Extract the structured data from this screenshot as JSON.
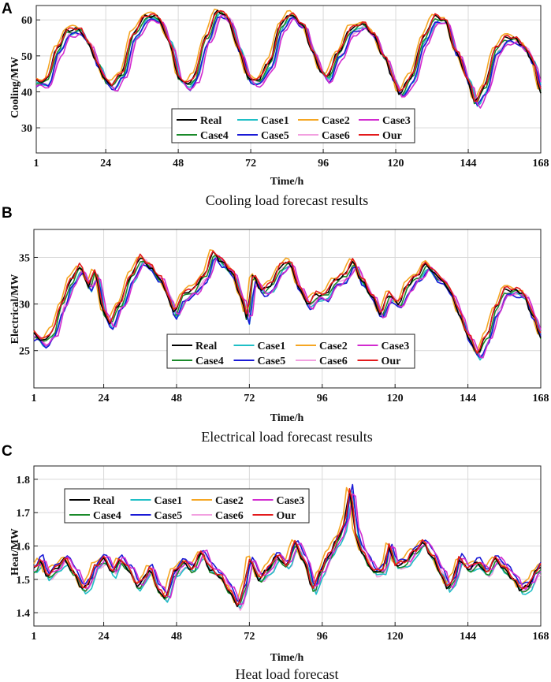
{
  "colors": {
    "Real": "#000000",
    "Case1": "#1fbfc6",
    "Case2": "#f5a623",
    "Case3": "#d22bd0",
    "Case4": "#1a8a2a",
    "Case5": "#1a1ad6",
    "Case6": "#f2a0e0",
    "Our": "#e31a1c"
  },
  "chart_data": [
    {
      "type": "line",
      "panel_label": "A",
      "caption": "Cooling load forecast results",
      "xlabel": "Time/h",
      "ylabel": "Cooling/MW",
      "xlim": [
        1,
        168
      ],
      "ylim": [
        23,
        64
      ],
      "xticks": [
        1,
        24,
        48,
        72,
        96,
        120,
        144,
        168
      ],
      "yticks": [
        30,
        40,
        50,
        60
      ],
      "grid": true,
      "legend": {
        "placement": "bottom-center",
        "entries": [
          "Real",
          "Case1",
          "Case2",
          "Case3",
          "Case4",
          "Case5",
          "Case6",
          "Our"
        ]
      },
      "keypoints": [
        [
          1,
          43
        ],
        [
          4,
          43
        ],
        [
          8,
          52
        ],
        [
          11,
          57
        ],
        [
          15,
          57.5
        ],
        [
          18,
          54
        ],
        [
          21,
          48
        ],
        [
          24,
          43
        ],
        [
          26,
          42
        ],
        [
          29,
          45
        ],
        [
          33,
          56
        ],
        [
          37,
          61
        ],
        [
          41,
          61
        ],
        [
          45,
          54
        ],
        [
          48,
          44
        ],
        [
          51,
          42
        ],
        [
          53,
          44
        ],
        [
          57,
          55
        ],
        [
          61,
          62.5
        ],
        [
          64,
          61
        ],
        [
          68,
          52
        ],
        [
          71,
          44
        ],
        [
          74,
          43
        ],
        [
          78,
          48
        ],
        [
          82,
          59
        ],
        [
          85,
          61.5
        ],
        [
          89,
          59
        ],
        [
          92,
          52
        ],
        [
          95,
          46
        ],
        [
          97,
          44
        ],
        [
          101,
          51
        ],
        [
          105,
          57.5
        ],
        [
          109,
          59
        ],
        [
          112,
          56.5
        ],
        [
          116,
          50
        ],
        [
          119,
          44
        ],
        [
          121,
          39.5
        ],
        [
          125,
          44
        ],
        [
          129,
          55
        ],
        [
          133,
          61
        ],
        [
          136,
          60
        ],
        [
          140,
          51
        ],
        [
          144,
          43
        ],
        [
          146,
          37
        ],
        [
          149,
          41
        ],
        [
          153,
          52
        ],
        [
          156,
          55
        ],
        [
          159,
          55
        ],
        [
          162,
          53
        ],
        [
          165,
          49
        ],
        [
          168,
          40
        ]
      ],
      "series_offsets": [
        {
          "name": "Case1",
          "dy": -0.8,
          "dx": 1
        },
        {
          "name": "Case2",
          "dy": 0.7,
          "dx": -0.5
        },
        {
          "name": "Case3",
          "dy": -1.5,
          "dx": 1.5
        },
        {
          "name": "Case4",
          "dy": -0.4,
          "dx": 0.4
        },
        {
          "name": "Case5",
          "dy": -1.2,
          "dx": 0.8
        },
        {
          "name": "Case6",
          "dy": -0.9,
          "dx": 1.2
        },
        {
          "name": "Our",
          "dy": 0.3,
          "dx": 0.2
        }
      ]
    },
    {
      "type": "line",
      "panel_label": "B",
      "caption": "Electrical load forecast results",
      "xlabel": "Time/h",
      "ylabel": "Electrical/MW",
      "xlim": [
        1,
        168
      ],
      "ylim": [
        21,
        38
      ],
      "xticks": [
        1,
        24,
        48,
        72,
        96,
        120,
        144,
        168
      ],
      "yticks": [
        25,
        30,
        35
      ],
      "grid": true,
      "legend": {
        "placement": "bottom-center",
        "entries": [
          "Real",
          "Case1",
          "Case2",
          "Case3",
          "Case4",
          "Case5",
          "Case6",
          "Our"
        ]
      },
      "keypoints": [
        [
          1,
          26.8
        ],
        [
          4,
          26
        ],
        [
          7,
          27
        ],
        [
          10,
          30
        ],
        [
          13,
          32.5
        ],
        [
          16,
          34
        ],
        [
          19,
          32
        ],
        [
          21,
          33.5
        ],
        [
          24,
          29
        ],
        [
          26,
          28
        ],
        [
          29,
          30
        ],
        [
          33,
          33
        ],
        [
          36,
          35
        ],
        [
          39,
          34
        ],
        [
          42,
          33
        ],
        [
          45,
          31
        ],
        [
          47,
          29
        ],
        [
          50,
          31
        ],
        [
          53,
          31.5
        ],
        [
          57,
          33
        ],
        [
          60,
          35.5
        ],
        [
          63,
          34.5
        ],
        [
          66,
          33.5
        ],
        [
          69,
          31
        ],
        [
          71,
          28.5
        ],
        [
          73,
          33
        ],
        [
          76,
          31.5
        ],
        [
          79,
          32
        ],
        [
          82,
          34
        ],
        [
          85,
          34.5
        ],
        [
          88,
          32
        ],
        [
          91,
          30
        ],
        [
          94,
          31
        ],
        [
          97,
          31
        ],
        [
          100,
          32.5
        ],
        [
          103,
          33
        ],
        [
          106,
          34.5
        ],
        [
          109,
          32.5
        ],
        [
          112,
          31
        ],
        [
          115,
          29
        ],
        [
          118,
          31
        ],
        [
          121,
          30
        ],
        [
          124,
          32
        ],
        [
          127,
          33
        ],
        [
          130,
          34.2
        ],
        [
          134,
          33
        ],
        [
          138,
          31.5
        ],
        [
          141,
          29
        ],
        [
          144,
          26.5
        ],
        [
          147,
          24.7
        ],
        [
          150,
          26.5
        ],
        [
          153,
          29.5
        ],
        [
          156,
          31.5
        ],
        [
          159,
          31.5
        ],
        [
          162,
          31.2
        ],
        [
          165,
          29
        ],
        [
          168,
          26.5
        ]
      ],
      "series_offsets": [
        {
          "name": "Case1",
          "dy": -0.5,
          "dx": 1
        },
        {
          "name": "Case2",
          "dy": 0.3,
          "dx": -0.5
        },
        {
          "name": "Case3",
          "dy": -0.4,
          "dx": 1.5
        },
        {
          "name": "Case4",
          "dy": -0.2,
          "dx": 0.4
        },
        {
          "name": "Case5",
          "dy": -0.6,
          "dx": 0.8
        },
        {
          "name": "Case6",
          "dy": -0.3,
          "dx": 1.2
        },
        {
          "name": "Our",
          "dy": 0.2,
          "dx": 0.2
        }
      ]
    },
    {
      "type": "line",
      "panel_label": "C",
      "caption": "Heat load forecast",
      "xlabel": "Time/h",
      "ylabel": "Heat/MW",
      "xlim": [
        1,
        168
      ],
      "ylim": [
        1.36,
        1.84
      ],
      "xticks": [
        1,
        24,
        48,
        72,
        96,
        120,
        144,
        168
      ],
      "yticks": [
        1.4,
        1.5,
        1.6,
        1.7,
        1.8
      ],
      "grid": true,
      "legend": {
        "placement": "top-left",
        "entries": [
          "Real",
          "Case1",
          "Case2",
          "Case3",
          "Case4",
          "Case5",
          "Case6",
          "Our"
        ]
      },
      "keypoints": [
        [
          1,
          1.53
        ],
        [
          3,
          1.56
        ],
        [
          5,
          1.51
        ],
        [
          8,
          1.53
        ],
        [
          11,
          1.56
        ],
        [
          14,
          1.52
        ],
        [
          17,
          1.47
        ],
        [
          19,
          1.49
        ],
        [
          21,
          1.54
        ],
        [
          24,
          1.56
        ],
        [
          27,
          1.52
        ],
        [
          29,
          1.56
        ],
        [
          32,
          1.53
        ],
        [
          35,
          1.48
        ],
        [
          37,
          1.5
        ],
        [
          39,
          1.53
        ],
        [
          42,
          1.47
        ],
        [
          44,
          1.44
        ],
        [
          47,
          1.52
        ],
        [
          50,
          1.55
        ],
        [
          53,
          1.53
        ],
        [
          56,
          1.58
        ],
        [
          59,
          1.53
        ],
        [
          62,
          1.51
        ],
        [
          65,
          1.47
        ],
        [
          68,
          1.42
        ],
        [
          70,
          1.47
        ],
        [
          72,
          1.56
        ],
        [
          75,
          1.5
        ],
        [
          78,
          1.53
        ],
        [
          81,
          1.57
        ],
        [
          84,
          1.54
        ],
        [
          87,
          1.61
        ],
        [
          90,
          1.55
        ],
        [
          93,
          1.47
        ],
        [
          95,
          1.52
        ],
        [
          98,
          1.57
        ],
        [
          101,
          1.62
        ],
        [
          103,
          1.66
        ],
        [
          105,
          1.77
        ],
        [
          107,
          1.63
        ],
        [
          109,
          1.58
        ],
        [
          111,
          1.55
        ],
        [
          113,
          1.52
        ],
        [
          116,
          1.53
        ],
        [
          118,
          1.6
        ],
        [
          120,
          1.54
        ],
        [
          123,
          1.55
        ],
        [
          126,
          1.58
        ],
        [
          129,
          1.61
        ],
        [
          132,
          1.57
        ],
        [
          135,
          1.52
        ],
        [
          137,
          1.47
        ],
        [
          139,
          1.5
        ],
        [
          141,
          1.56
        ],
        [
          144,
          1.53
        ],
        [
          147,
          1.55
        ],
        [
          150,
          1.52
        ],
        [
          153,
          1.56
        ],
        [
          156,
          1.53
        ],
        [
          159,
          1.5
        ],
        [
          161,
          1.47
        ],
        [
          164,
          1.48
        ],
        [
          166,
          1.52
        ],
        [
          168,
          1.54
        ]
      ],
      "series_offsets": [
        {
          "name": "Case1",
          "dy": -0.012,
          "dx": 1
        },
        {
          "name": "Case2",
          "dy": 0.01,
          "dx": -0.6
        },
        {
          "name": "Case3",
          "dy": 0.005,
          "dx": 1.5
        },
        {
          "name": "Case4",
          "dy": -0.006,
          "dx": 0.4
        },
        {
          "name": "Case5",
          "dy": 0.012,
          "dx": 0.8
        },
        {
          "name": "Case6",
          "dy": -0.008,
          "dx": 1.2
        },
        {
          "name": "Our",
          "dy": 0.004,
          "dx": 0.2
        }
      ]
    }
  ]
}
